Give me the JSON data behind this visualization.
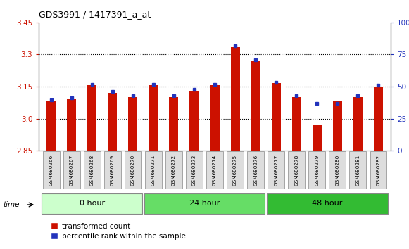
{
  "title": "GDS3991 / 1417391_a_at",
  "samples": [
    "GSM680266",
    "GSM680267",
    "GSM680268",
    "GSM680269",
    "GSM680270",
    "GSM680271",
    "GSM680272",
    "GSM680273",
    "GSM680274",
    "GSM680275",
    "GSM680276",
    "GSM680277",
    "GSM680278",
    "GSM680279",
    "GSM680280",
    "GSM680281",
    "GSM680282"
  ],
  "groups": [
    {
      "label": "0 hour",
      "start": 0,
      "end": 5,
      "color": "#ccffcc"
    },
    {
      "label": "24 hour",
      "start": 5,
      "end": 11,
      "color": "#66dd66"
    },
    {
      "label": "48 hour",
      "start": 11,
      "end": 17,
      "color": "#33bb33"
    }
  ],
  "red_values": [
    3.08,
    3.09,
    3.155,
    3.12,
    3.1,
    3.155,
    3.1,
    3.13,
    3.155,
    3.335,
    3.27,
    3.165,
    3.1,
    2.97,
    3.08,
    3.1,
    3.15
  ],
  "blue_top_offsets": [
    0.006,
    0.006,
    0.006,
    0.006,
    0.006,
    0.006,
    0.006,
    0.006,
    0.006,
    0.006,
    0.006,
    0.006,
    0.006,
    0.006,
    0.006,
    0.006,
    0.006
  ],
  "blue_standalone": [
    false,
    false,
    false,
    false,
    false,
    false,
    false,
    false,
    false,
    false,
    false,
    false,
    false,
    true,
    true,
    false,
    false
  ],
  "blue_standalone_vals": [
    3.05,
    3.05,
    3.05,
    3.05,
    3.05,
    3.05,
    3.05,
    3.05,
    3.05,
    3.05,
    3.05,
    3.05,
    3.05,
    3.07,
    3.07,
    3.05,
    3.05
  ],
  "ylim_left": [
    2.85,
    3.45
  ],
  "ylim_right": [
    0,
    100
  ],
  "yticks_left": [
    2.85,
    3.0,
    3.15,
    3.3,
    3.45
  ],
  "yticks_right": [
    0,
    25,
    50,
    75,
    100
  ],
  "bar_color": "#cc1100",
  "blue_color": "#2233bb",
  "bar_width": 0.45,
  "base": 2.85,
  "grid_lines": [
    3.0,
    3.15,
    3.3
  ],
  "tick_label_fontsize": 5.5,
  "tick_bg_color": "#dddddd"
}
